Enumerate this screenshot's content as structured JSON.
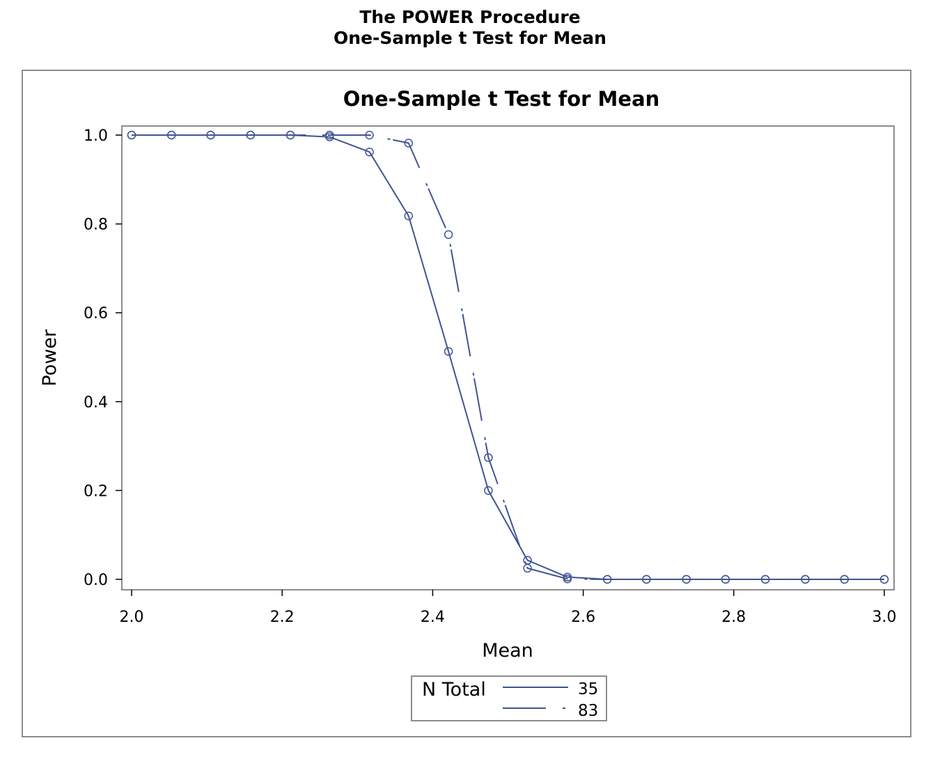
{
  "header": {
    "title": "The POWER Procedure",
    "subtitle": "One-Sample t Test for Mean"
  },
  "colors": {
    "series": "#3f5592",
    "frame": "#8c8c8c",
    "text": "#000000"
  },
  "chart_data": {
    "type": "line",
    "title": "One-Sample t Test for Mean",
    "xlabel": "Mean",
    "ylabel": "Power",
    "xlim": [
      2.0,
      3.0
    ],
    "ylim": [
      0.0,
      1.0
    ],
    "xticks": [
      "2.0",
      "2.2",
      "2.4",
      "2.6",
      "2.8",
      "3.0"
    ],
    "yticks": [
      "0.0",
      "0.2",
      "0.4",
      "0.6",
      "0.8",
      "1.0"
    ],
    "grid": false,
    "marker": "circle",
    "legend": {
      "title": "N Total",
      "position": "bottom-center",
      "entries": [
        "35",
        "83"
      ]
    },
    "series": [
      {
        "name": "35",
        "style": "solid",
        "x": [
          2.0,
          2.053,
          2.105,
          2.158,
          2.211,
          2.263,
          2.316,
          2.368,
          2.421,
          2.474,
          2.526,
          2.579,
          2.632,
          2.684,
          2.737,
          2.789,
          2.842,
          2.895,
          2.947,
          3.0
        ],
        "y": [
          1.0,
          1.0,
          1.0,
          1.0,
          1.0,
          0.996,
          0.962,
          0.818,
          0.513,
          0.2,
          0.043,
          0.005,
          0.0,
          0.0,
          0.0,
          0.0,
          0.0,
          0.0,
          0.0,
          0.0
        ]
      },
      {
        "name": "83",
        "style": "dashed",
        "x": [
          2.0,
          2.053,
          2.105,
          2.158,
          2.211,
          2.263,
          2.316,
          2.368,
          2.421,
          2.474,
          2.526,
          2.579,
          2.632,
          2.684,
          2.737,
          2.789,
          2.842,
          2.895,
          2.947,
          3.0
        ],
        "y": [
          1.0,
          1.0,
          1.0,
          1.0,
          1.0,
          1.0,
          1.0,
          0.982,
          0.776,
          0.274,
          0.025,
          0.001,
          0.0,
          0.0,
          0.0,
          0.0,
          0.0,
          0.0,
          0.0,
          0.0
        ]
      }
    ]
  }
}
